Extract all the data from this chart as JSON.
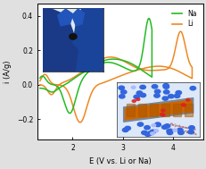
{
  "xlabel": "E (V vs. Li or Na)",
  "ylabel": "i (A/g)",
  "xlim": [
    1.3,
    4.6
  ],
  "ylim": [
    -0.32,
    0.47
  ],
  "xticks": [
    2,
    3,
    4
  ],
  "yticks": [
    -0.2,
    0.0,
    0.2,
    0.4
  ],
  "na_color": "#22bb22",
  "li_color": "#ee8822",
  "background_color": "#ffffff",
  "legend_na": "Na",
  "legend_li": "Li",
  "fig_bg": "#e0e0e0"
}
